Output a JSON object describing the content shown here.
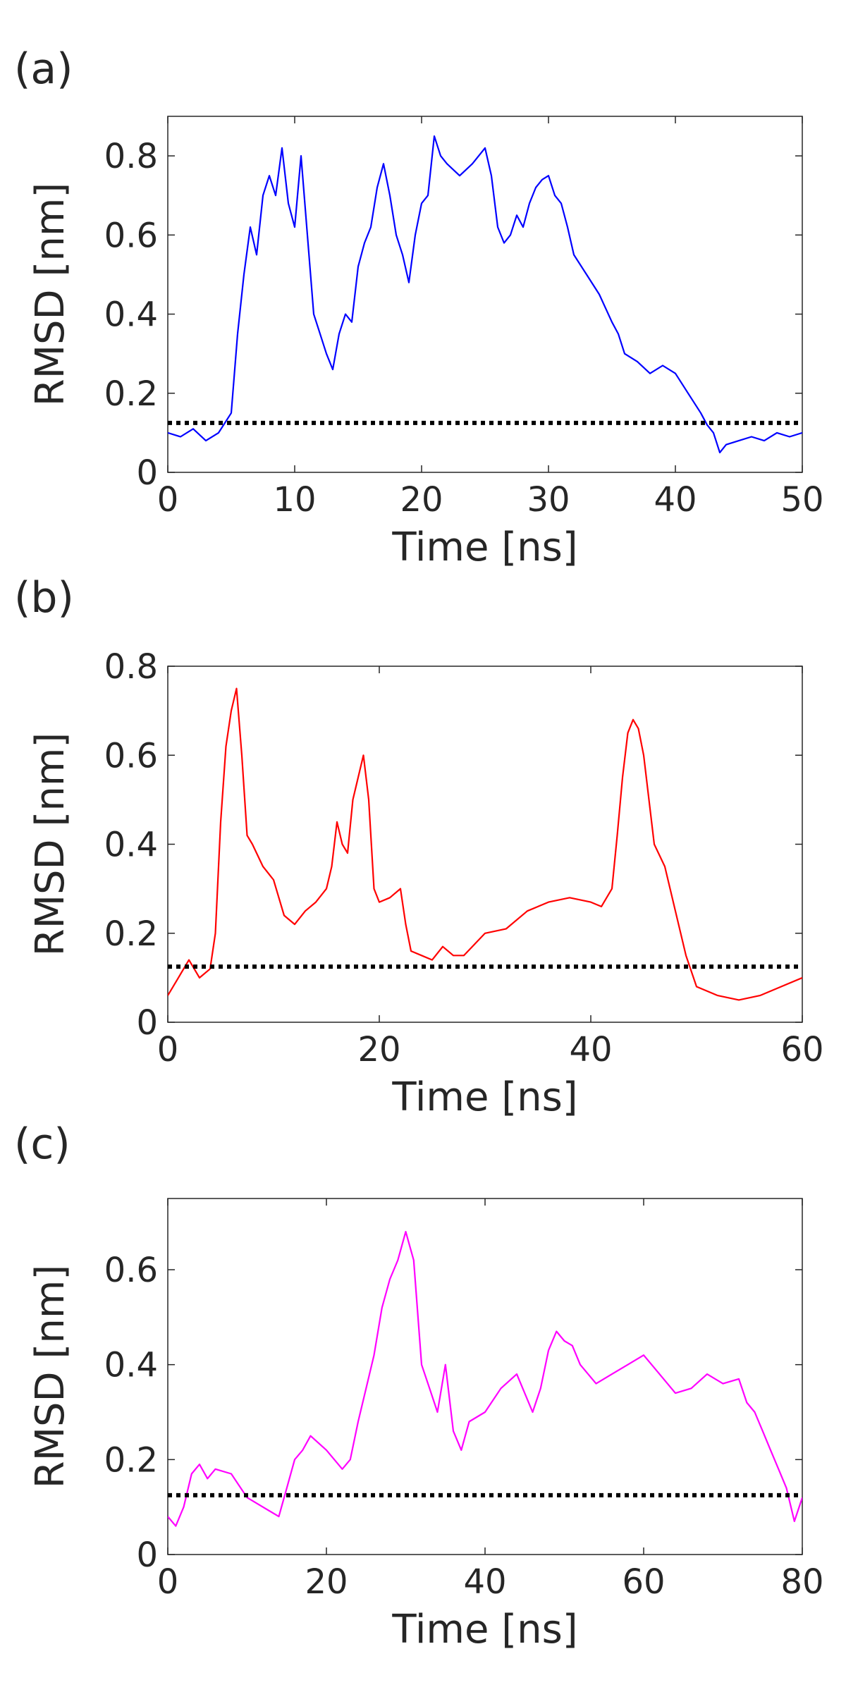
{
  "figure": {
    "panels": [
      {
        "label": "(a)"
      },
      {
        "label": "(b)"
      },
      {
        "label": "(c)"
      }
    ]
  },
  "chart_data": [
    {
      "type": "line",
      "panel": "(a)",
      "xlabel": "Time [ns]",
      "ylabel": "RMSD [nm]",
      "xlim": [
        0,
        50
      ],
      "ylim": [
        0,
        0.9
      ],
      "xticks": [
        0,
        10,
        20,
        30,
        40,
        50
      ],
      "yticks": [
        0,
        0.2,
        0.4,
        0.6,
        0.8
      ],
      "threshold": 0.125,
      "threshold_style": "black dotted",
      "series": [
        {
          "name": "RMSD",
          "color": "#0000ff",
          "x": [
            0,
            1,
            2,
            3,
            4,
            5,
            5.5,
            6,
            6.5,
            7,
            7.5,
            8,
            8.5,
            9,
            9.5,
            10,
            10.5,
            11,
            11.5,
            12,
            12.5,
            13,
            13.5,
            14,
            14.5,
            15,
            15.5,
            16,
            16.5,
            17,
            17.5,
            18,
            18.5,
            19,
            19.5,
            20,
            20.5,
            21,
            21.5,
            22,
            23,
            24,
            25,
            25.5,
            26,
            26.5,
            27,
            27.5,
            28,
            28.5,
            29,
            29.5,
            30,
            30.5,
            31,
            31.5,
            32,
            33,
            34,
            35,
            35.5,
            36,
            37,
            38,
            39,
            40,
            41,
            42,
            42.5,
            43,
            43.5,
            44,
            45,
            46,
            47,
            48,
            49,
            50
          ],
          "y": [
            0.1,
            0.09,
            0.11,
            0.08,
            0.1,
            0.15,
            0.35,
            0.5,
            0.62,
            0.55,
            0.7,
            0.75,
            0.7,
            0.82,
            0.68,
            0.62,
            0.8,
            0.6,
            0.4,
            0.35,
            0.3,
            0.26,
            0.35,
            0.4,
            0.38,
            0.52,
            0.58,
            0.62,
            0.72,
            0.78,
            0.7,
            0.6,
            0.55,
            0.48,
            0.6,
            0.68,
            0.7,
            0.85,
            0.8,
            0.78,
            0.75,
            0.78,
            0.82,
            0.75,
            0.62,
            0.58,
            0.6,
            0.65,
            0.62,
            0.68,
            0.72,
            0.74,
            0.75,
            0.7,
            0.68,
            0.62,
            0.55,
            0.5,
            0.45,
            0.38,
            0.35,
            0.3,
            0.28,
            0.25,
            0.27,
            0.25,
            0.2,
            0.15,
            0.12,
            0.1,
            0.05,
            0.07,
            0.08,
            0.09,
            0.08,
            0.1,
            0.09,
            0.1
          ]
        }
      ]
    },
    {
      "type": "line",
      "panel": "(b)",
      "xlabel": "Time [ns]",
      "ylabel": "RMSD [nm]",
      "xlim": [
        0,
        60
      ],
      "ylim": [
        0,
        0.8
      ],
      "xticks": [
        0,
        20,
        40,
        60
      ],
      "yticks": [
        0,
        0.2,
        0.4,
        0.6,
        0.8
      ],
      "threshold": 0.125,
      "threshold_style": "black dotted",
      "series": [
        {
          "name": "RMSD",
          "color": "#ff0000",
          "x": [
            0,
            1,
            2,
            3,
            4,
            4.5,
            5,
            5.5,
            6,
            6.5,
            7,
            7.5,
            8,
            9,
            10,
            11,
            12,
            13,
            14,
            15,
            15.5,
            16,
            16.5,
            17,
            17.5,
            18,
            18.5,
            19,
            19.5,
            20,
            21,
            22,
            22.5,
            23,
            24,
            25,
            26,
            27,
            28,
            30,
            32,
            34,
            36,
            38,
            40,
            41,
            42,
            42.5,
            43,
            43.5,
            44,
            44.5,
            45,
            45.5,
            46,
            47,
            48,
            49,
            50,
            52,
            54,
            56,
            58,
            60
          ],
          "y": [
            0.06,
            0.1,
            0.14,
            0.1,
            0.12,
            0.2,
            0.45,
            0.62,
            0.7,
            0.75,
            0.6,
            0.42,
            0.4,
            0.35,
            0.32,
            0.24,
            0.22,
            0.25,
            0.27,
            0.3,
            0.35,
            0.45,
            0.4,
            0.38,
            0.5,
            0.55,
            0.6,
            0.5,
            0.3,
            0.27,
            0.28,
            0.3,
            0.22,
            0.16,
            0.15,
            0.14,
            0.17,
            0.15,
            0.15,
            0.2,
            0.21,
            0.25,
            0.27,
            0.28,
            0.27,
            0.26,
            0.3,
            0.42,
            0.55,
            0.65,
            0.68,
            0.66,
            0.6,
            0.5,
            0.4,
            0.35,
            0.25,
            0.15,
            0.08,
            0.06,
            0.05,
            0.06,
            0.08,
            0.1
          ]
        }
      ]
    },
    {
      "type": "line",
      "panel": "(c)",
      "xlabel": "Time [ns]",
      "ylabel": "RMSD [nm]",
      "xlim": [
        0,
        80
      ],
      "ylim": [
        0,
        0.75
      ],
      "xticks": [
        0,
        20,
        40,
        60,
        80
      ],
      "yticks": [
        0,
        0.2,
        0.4,
        0.6
      ],
      "threshold": 0.125,
      "threshold_style": "black dotted",
      "series": [
        {
          "name": "RMSD",
          "color": "#ff00ff",
          "x": [
            0,
            1,
            2,
            3,
            4,
            5,
            6,
            8,
            10,
            12,
            14,
            15,
            16,
            17,
            18,
            20,
            22,
            23,
            24,
            25,
            26,
            27,
            28,
            29,
            30,
            31,
            32,
            33,
            34,
            35,
            36,
            37,
            38,
            40,
            42,
            44,
            46,
            47,
            48,
            49,
            50,
            51,
            52,
            54,
            56,
            58,
            60,
            62,
            64,
            66,
            68,
            70,
            72,
            73,
            74,
            75,
            76,
            77,
            78,
            79,
            80
          ],
          "y": [
            0.08,
            0.06,
            0.1,
            0.17,
            0.19,
            0.16,
            0.18,
            0.17,
            0.12,
            0.1,
            0.08,
            0.14,
            0.2,
            0.22,
            0.25,
            0.22,
            0.18,
            0.2,
            0.28,
            0.35,
            0.42,
            0.52,
            0.58,
            0.62,
            0.68,
            0.62,
            0.4,
            0.35,
            0.3,
            0.4,
            0.26,
            0.22,
            0.28,
            0.3,
            0.35,
            0.38,
            0.3,
            0.35,
            0.43,
            0.47,
            0.45,
            0.44,
            0.4,
            0.36,
            0.38,
            0.4,
            0.42,
            0.38,
            0.34,
            0.35,
            0.38,
            0.36,
            0.37,
            0.32,
            0.3,
            0.26,
            0.22,
            0.18,
            0.14,
            0.07,
            0.12
          ]
        }
      ]
    }
  ]
}
